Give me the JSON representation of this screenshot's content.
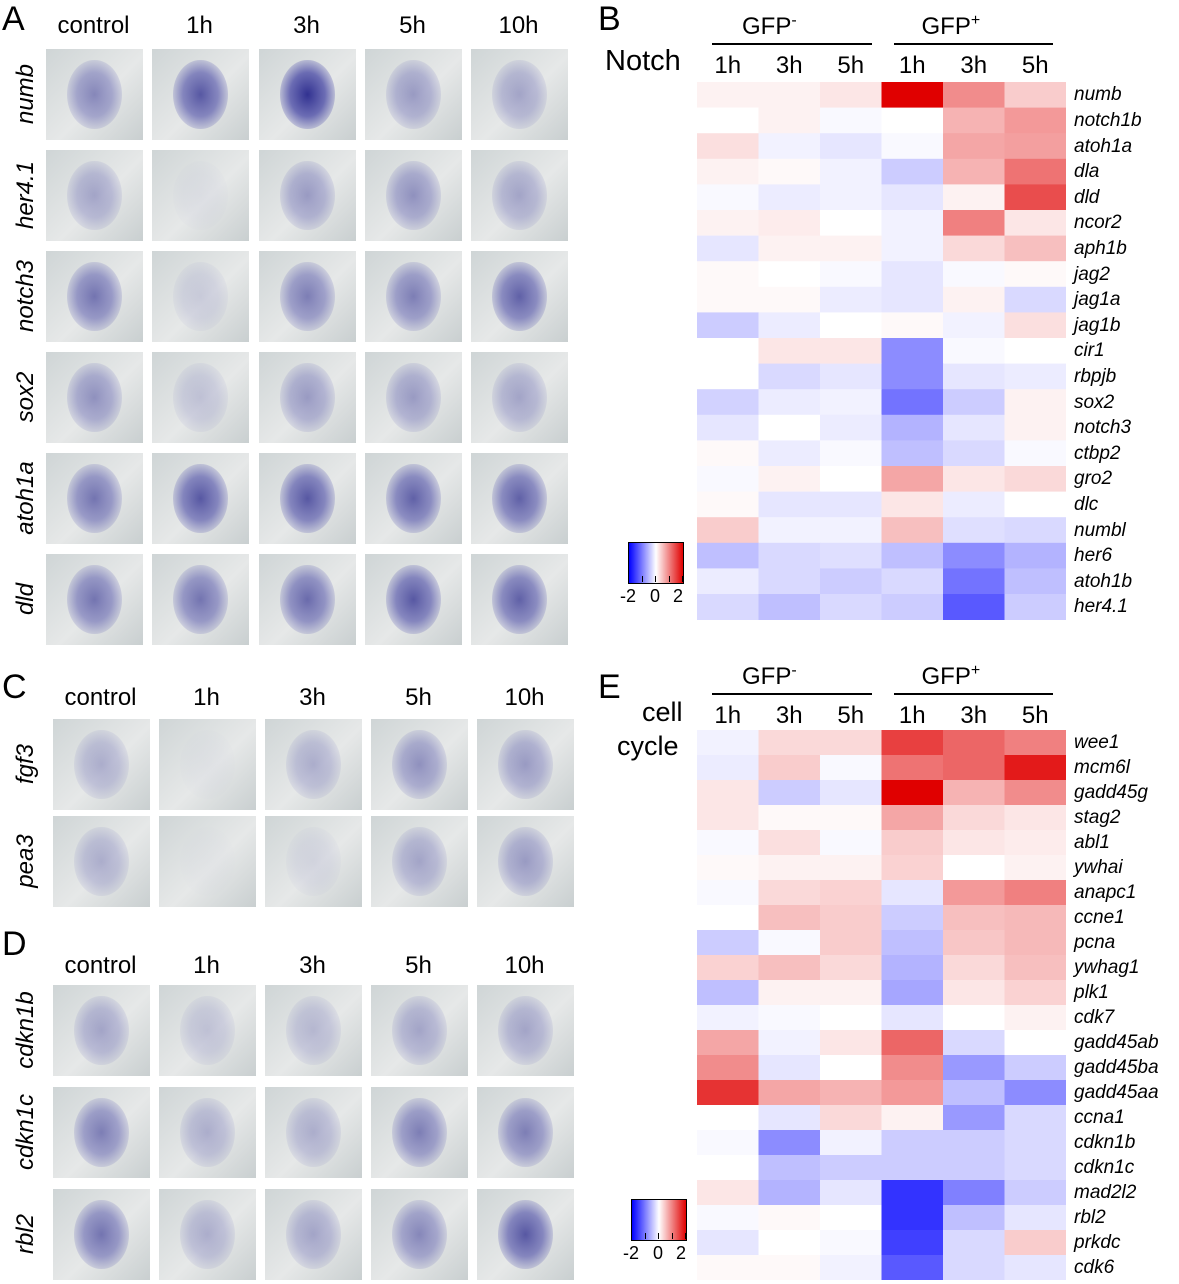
{
  "panels": {
    "A": {
      "letter": "A",
      "columns": [
        "control",
        "1h",
        "3h",
        "5h",
        "10h"
      ],
      "genes": [
        "numb",
        "her4.1",
        "notch3",
        "sox2",
        "atoh1a",
        "dld"
      ]
    },
    "C": {
      "letter": "C",
      "columns": [
        "control",
        "1h",
        "3h",
        "5h",
        "10h"
      ],
      "genes": [
        "fgf3",
        "pea3"
      ]
    },
    "D": {
      "letter": "D",
      "columns": [
        "control",
        "1h",
        "3h",
        "5h",
        "10h"
      ],
      "genes": [
        "cdkn1b",
        "cdkn1c",
        "rbl2"
      ]
    }
  },
  "heatmapB": {
    "letter": "B",
    "group_neg": "GFP",
    "group_neg_sup": "-",
    "group_pos": "GFP",
    "group_pos_sup": "+",
    "row_title": "Notch",
    "times": [
      "1h",
      "3h",
      "5h",
      "1h",
      "3h",
      "5h"
    ],
    "legend": {
      "min": "-2",
      "mid": "0",
      "max": "2"
    },
    "rows": [
      {
        "gene": "numb",
        "values": [
          0.1,
          0.1,
          0.2,
          2.0,
          0.9,
          0.4
        ]
      },
      {
        "gene": "notch1b",
        "values": [
          0.0,
          0.1,
          -0.05,
          0.0,
          0.6,
          0.8
        ]
      },
      {
        "gene": "atoh1a",
        "values": [
          0.25,
          -0.1,
          -0.2,
          -0.05,
          0.7,
          0.75
        ]
      },
      {
        "gene": "dla",
        "values": [
          0.1,
          0.05,
          -0.1,
          -0.4,
          0.6,
          1.1
        ]
      },
      {
        "gene": "dld",
        "values": [
          -0.05,
          -0.15,
          -0.1,
          -0.2,
          0.1,
          1.4
        ]
      },
      {
        "gene": "ncor2",
        "values": [
          0.1,
          0.15,
          0.0,
          -0.1,
          1.0,
          0.2
        ]
      },
      {
        "gene": "aph1b",
        "values": [
          -0.2,
          0.1,
          0.1,
          -0.1,
          0.3,
          0.5
        ]
      },
      {
        "gene": "jag2",
        "values": [
          0.05,
          0.0,
          -0.05,
          -0.2,
          -0.05,
          0.05
        ]
      },
      {
        "gene": "jag1a",
        "values": [
          0.05,
          0.05,
          -0.15,
          -0.2,
          0.1,
          -0.3
        ]
      },
      {
        "gene": "jag1b",
        "values": [
          -0.4,
          -0.15,
          0.0,
          0.05,
          -0.1,
          0.25
        ]
      },
      {
        "gene": "cir1",
        "values": [
          0.0,
          0.2,
          0.2,
          -0.9,
          -0.05,
          0.0
        ]
      },
      {
        "gene": "rbpjb",
        "values": [
          0.0,
          -0.3,
          -0.2,
          -0.9,
          -0.2,
          -0.15
        ]
      },
      {
        "gene": "sox2",
        "values": [
          -0.35,
          -0.15,
          -0.1,
          -1.1,
          -0.4,
          0.1
        ]
      },
      {
        "gene": "notch3",
        "values": [
          -0.2,
          0.0,
          -0.15,
          -0.6,
          -0.2,
          0.1
        ]
      },
      {
        "gene": "ctbp2",
        "values": [
          0.05,
          -0.15,
          -0.05,
          -0.5,
          -0.3,
          -0.05
        ]
      },
      {
        "gene": "gro2",
        "values": [
          -0.05,
          0.1,
          0.0,
          0.7,
          0.2,
          0.3
        ]
      },
      {
        "gene": "dlc",
        "values": [
          0.05,
          -0.2,
          -0.2,
          0.2,
          -0.15,
          0.0
        ]
      },
      {
        "gene": "numbl",
        "values": [
          0.4,
          -0.1,
          -0.1,
          0.5,
          -0.25,
          -0.3
        ]
      },
      {
        "gene": "her6",
        "values": [
          -0.5,
          -0.3,
          -0.25,
          -0.5,
          -0.9,
          -0.6
        ]
      },
      {
        "gene": "atoh1b",
        "values": [
          -0.15,
          -0.3,
          -0.4,
          -0.3,
          -1.1,
          -0.5
        ]
      },
      {
        "gene": "her4.1",
        "values": [
          -0.3,
          -0.5,
          -0.3,
          -0.4,
          -1.3,
          -0.4
        ]
      }
    ]
  },
  "heatmapE": {
    "letter": "E",
    "group_neg": "GFP",
    "group_neg_sup": "-",
    "group_pos": "GFP",
    "group_pos_sup": "+",
    "row_title_1": "cell",
    "row_title_2": "cycle",
    "times": [
      "1h",
      "3h",
      "5h",
      "1h",
      "3h",
      "5h"
    ],
    "legend": {
      "min": "-2",
      "mid": "0",
      "max": "2"
    },
    "rows": [
      {
        "gene": "wee1",
        "values": [
          -0.1,
          0.3,
          0.3,
          1.5,
          1.2,
          1.0
        ]
      },
      {
        "gene": "mcm6l",
        "values": [
          -0.15,
          0.4,
          -0.05,
          1.1,
          1.2,
          1.8
        ]
      },
      {
        "gene": "gadd45g",
        "values": [
          0.2,
          -0.4,
          -0.2,
          2.0,
          0.6,
          0.9
        ]
      },
      {
        "gene": "stag2",
        "values": [
          0.2,
          0.05,
          0.05,
          0.7,
          0.3,
          0.2
        ]
      },
      {
        "gene": "abl1",
        "values": [
          -0.05,
          0.25,
          -0.05,
          0.4,
          0.2,
          0.15
        ]
      },
      {
        "gene": "ywhai",
        "values": [
          0.05,
          0.1,
          0.1,
          0.35,
          0.0,
          0.1
        ]
      },
      {
        "gene": "anapc1",
        "values": [
          -0.05,
          0.3,
          0.35,
          -0.2,
          0.8,
          1.0
        ]
      },
      {
        "gene": "ccne1",
        "values": [
          0.0,
          0.5,
          0.4,
          -0.4,
          0.5,
          0.55
        ]
      },
      {
        "gene": "pcna",
        "values": [
          -0.4,
          -0.05,
          0.4,
          -0.5,
          0.45,
          0.55
        ]
      },
      {
        "gene": "ywhag1",
        "values": [
          0.35,
          0.5,
          0.3,
          -0.6,
          0.3,
          0.5
        ]
      },
      {
        "gene": "plk1",
        "values": [
          -0.5,
          0.1,
          0.1,
          -0.7,
          0.2,
          0.35
        ]
      },
      {
        "gene": "cdk7",
        "values": [
          -0.1,
          -0.05,
          0.0,
          -0.2,
          0.0,
          0.1
        ]
      },
      {
        "gene": "gadd45ab",
        "values": [
          0.7,
          -0.1,
          0.2,
          1.2,
          -0.3,
          0.0
        ]
      },
      {
        "gene": "gadd45ba",
        "values": [
          0.9,
          -0.2,
          0.0,
          0.9,
          -0.8,
          -0.4
        ]
      },
      {
        "gene": "gadd45aa",
        "values": [
          1.6,
          0.7,
          0.6,
          0.8,
          -0.5,
          -0.9
        ]
      },
      {
        "gene": "ccna1",
        "values": [
          0.0,
          -0.2,
          0.3,
          0.1,
          -0.8,
          -0.3
        ]
      },
      {
        "gene": "cdkn1b",
        "values": [
          -0.05,
          -0.9,
          -0.1,
          -0.4,
          -0.4,
          -0.3
        ]
      },
      {
        "gene": "cdkn1c",
        "values": [
          0.0,
          -0.5,
          -0.4,
          -0.4,
          -0.4,
          -0.3
        ]
      },
      {
        "gene": "mad2l2",
        "values": [
          0.2,
          -0.6,
          -0.2,
          -1.6,
          -1.0,
          -0.4
        ]
      },
      {
        "gene": "rbl2",
        "values": [
          -0.05,
          0.05,
          0.0,
          -1.6,
          -0.5,
          -0.2
        ]
      },
      {
        "gene": "prkdc",
        "values": [
          -0.2,
          0.0,
          -0.05,
          -1.5,
          -0.3,
          0.4
        ]
      },
      {
        "gene": "cdk6",
        "values": [
          0.05,
          0.05,
          -0.1,
          -1.3,
          -0.3,
          -0.2
        ]
      }
    ]
  },
  "colors": {
    "low": "#0000ff",
    "mid": "#ffffff",
    "high": "#e00000",
    "img_bg": "#d8dcdc",
    "stain": "#3a3a96"
  }
}
